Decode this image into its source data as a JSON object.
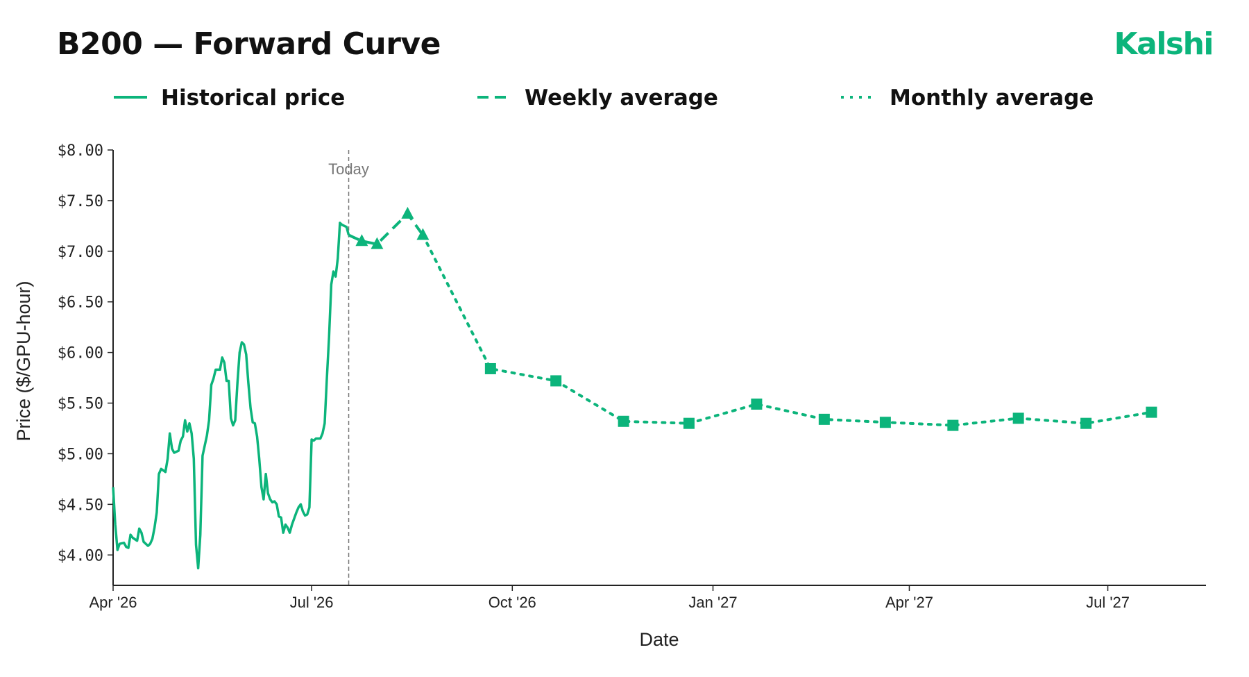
{
  "title": "B200 — Forward Curve",
  "brand": "Kalshi",
  "chart_data": {
    "type": "line",
    "title": "B200 — Forward Curve",
    "xlabel": "Date",
    "ylabel": "Price ($/GPU-hour)",
    "ylim": [
      3.7,
      8.0
    ],
    "xlim": [
      "2026-04-01",
      "2027-08-15"
    ],
    "y_ticks": [
      4.0,
      4.5,
      5.0,
      5.5,
      6.0,
      6.5,
      7.0,
      7.5,
      8.0
    ],
    "y_tick_labels": [
      "$4.00",
      "$4.50",
      "$5.00",
      "$5.50",
      "$6.00",
      "$6.50",
      "$7.00",
      "$7.50",
      "$8.00"
    ],
    "x_ticks": [
      "2026-04-01",
      "2026-07-01",
      "2026-10-01",
      "2027-01-01",
      "2027-04-01",
      "2027-07-01"
    ],
    "x_tick_labels": [
      "Apr '26",
      "Jul '26",
      "Oct '26",
      "Jan '27",
      "Apr '27",
      "Jul '27"
    ],
    "grid": false,
    "legend_position": "top",
    "today": {
      "date": "2026-07-18",
      "label": "Today"
    },
    "colors": {
      "series": "#0cb47b",
      "today_line": "#777777",
      "axis": "#222222"
    },
    "series": [
      {
        "name": "Historical price",
        "style": "solid",
        "marker": "none",
        "points": [
          [
            "2026-04-01",
            4.67
          ],
          [
            "2026-04-02",
            4.3
          ],
          [
            "2026-04-03",
            4.05
          ],
          [
            "2026-04-04",
            4.11
          ],
          [
            "2026-04-06",
            4.12
          ],
          [
            "2026-04-07",
            4.08
          ],
          [
            "2026-04-08",
            4.07
          ],
          [
            "2026-04-09",
            4.2
          ],
          [
            "2026-04-10",
            4.17
          ],
          [
            "2026-04-12",
            4.14
          ],
          [
            "2026-04-13",
            4.26
          ],
          [
            "2026-04-14",
            4.22
          ],
          [
            "2026-04-15",
            4.13
          ],
          [
            "2026-04-17",
            4.09
          ],
          [
            "2026-04-18",
            4.11
          ],
          [
            "2026-04-19",
            4.16
          ],
          [
            "2026-04-20",
            4.27
          ],
          [
            "2026-04-21",
            4.42
          ],
          [
            "2026-04-22",
            4.8
          ],
          [
            "2026-04-23",
            4.85
          ],
          [
            "2026-04-25",
            4.82
          ],
          [
            "2026-04-26",
            4.95
          ],
          [
            "2026-04-27",
            5.2
          ],
          [
            "2026-04-28",
            5.05
          ],
          [
            "2026-04-29",
            5.01
          ],
          [
            "2026-05-01",
            5.03
          ],
          [
            "2026-05-02",
            5.13
          ],
          [
            "2026-05-03",
            5.17
          ],
          [
            "2026-05-04",
            5.33
          ],
          [
            "2026-05-05",
            5.22
          ],
          [
            "2026-05-06",
            5.3
          ],
          [
            "2026-05-07",
            5.2
          ],
          [
            "2026-05-08",
            4.95
          ],
          [
            "2026-05-09",
            4.1
          ],
          [
            "2026-05-10",
            3.87
          ],
          [
            "2026-05-11",
            4.2
          ],
          [
            "2026-05-12",
            4.98
          ],
          [
            "2026-05-14",
            5.18
          ],
          [
            "2026-05-15",
            5.33
          ],
          [
            "2026-05-16",
            5.68
          ],
          [
            "2026-05-17",
            5.74
          ],
          [
            "2026-05-18",
            5.83
          ],
          [
            "2026-05-20",
            5.83
          ],
          [
            "2026-05-21",
            5.95
          ],
          [
            "2026-05-22",
            5.9
          ],
          [
            "2026-05-23",
            5.72
          ],
          [
            "2026-05-24",
            5.72
          ],
          [
            "2026-05-25",
            5.35
          ],
          [
            "2026-05-26",
            5.28
          ],
          [
            "2026-05-27",
            5.33
          ],
          [
            "2026-05-28",
            5.7
          ],
          [
            "2026-05-29",
            6.0
          ],
          [
            "2026-05-30",
            6.1
          ],
          [
            "2026-05-31",
            6.08
          ],
          [
            "2026-06-01",
            5.98
          ],
          [
            "2026-06-02",
            5.7
          ],
          [
            "2026-06-03",
            5.45
          ],
          [
            "2026-06-04",
            5.31
          ],
          [
            "2026-06-05",
            5.3
          ],
          [
            "2026-06-06",
            5.17
          ],
          [
            "2026-06-07",
            4.95
          ],
          [
            "2026-06-08",
            4.67
          ],
          [
            "2026-06-09",
            4.55
          ],
          [
            "2026-06-10",
            4.8
          ],
          [
            "2026-06-11",
            4.61
          ],
          [
            "2026-06-12",
            4.55
          ],
          [
            "2026-06-13",
            4.52
          ],
          [
            "2026-06-14",
            4.53
          ],
          [
            "2026-06-15",
            4.5
          ],
          [
            "2026-06-16",
            4.38
          ],
          [
            "2026-06-17",
            4.37
          ],
          [
            "2026-06-18",
            4.22
          ],
          [
            "2026-06-19",
            4.3
          ],
          [
            "2026-06-20",
            4.27
          ],
          [
            "2026-06-21",
            4.22
          ],
          [
            "2026-06-22",
            4.3
          ],
          [
            "2026-06-24",
            4.42
          ],
          [
            "2026-06-25",
            4.47
          ],
          [
            "2026-06-26",
            4.5
          ],
          [
            "2026-06-27",
            4.43
          ],
          [
            "2026-06-28",
            4.39
          ],
          [
            "2026-06-29",
            4.4
          ],
          [
            "2026-06-30",
            4.47
          ],
          [
            "2026-07-01",
            5.14
          ],
          [
            "2026-07-02",
            5.13
          ],
          [
            "2026-07-03",
            5.15
          ],
          [
            "2026-07-05",
            5.15
          ],
          [
            "2026-07-06",
            5.2
          ],
          [
            "2026-07-07",
            5.3
          ],
          [
            "2026-07-08",
            5.75
          ],
          [
            "2026-07-09",
            6.15
          ],
          [
            "2026-07-10",
            6.67
          ],
          [
            "2026-07-11",
            6.8
          ],
          [
            "2026-07-12",
            6.75
          ],
          [
            "2026-07-13",
            6.93
          ],
          [
            "2026-07-14",
            7.28
          ],
          [
            "2026-07-15",
            7.26
          ],
          [
            "2026-07-17",
            7.24
          ],
          [
            "2026-07-18",
            7.16
          ]
        ]
      },
      {
        "name": "Weekly average",
        "style": "dashed",
        "marker": "triangle",
        "points": [
          [
            "2026-07-18",
            7.16
          ],
          [
            "2026-07-24",
            7.1
          ],
          [
            "2026-07-31",
            7.07
          ],
          [
            "2026-08-14",
            7.37
          ],
          [
            "2026-08-21",
            7.16
          ]
        ]
      },
      {
        "name": "Monthly average",
        "style": "dotted",
        "marker": "square",
        "points": [
          [
            "2026-08-21",
            7.16
          ],
          [
            "2026-09-21",
            5.84
          ],
          [
            "2026-10-21",
            5.72
          ],
          [
            "2026-11-21",
            5.32
          ],
          [
            "2026-12-21",
            5.3
          ],
          [
            "2027-01-21",
            5.49
          ],
          [
            "2027-02-21",
            5.34
          ],
          [
            "2027-03-21",
            5.31
          ],
          [
            "2027-04-21",
            5.28
          ],
          [
            "2027-05-21",
            5.35
          ],
          [
            "2027-06-21",
            5.3
          ],
          [
            "2027-07-21",
            5.41
          ]
        ]
      }
    ]
  }
}
